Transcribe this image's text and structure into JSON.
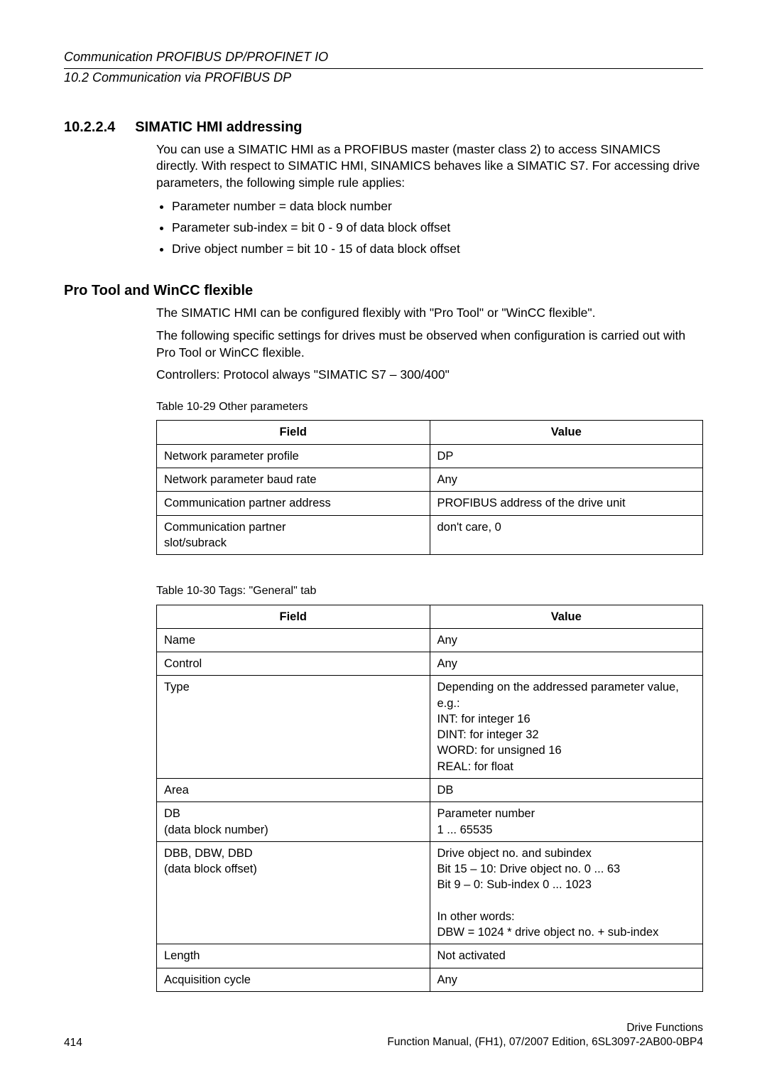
{
  "header": {
    "line1": "Communication PROFIBUS DP/PROFINET IO",
    "line2": "10.2 Communication via PROFIBUS DP"
  },
  "section": {
    "number": "10.2.2.4",
    "title": "SIMATIC HMI addressing",
    "intro": "You can use a SIMATIC HMI as a PROFIBUS master (master class 2) to access SINAMICS directly. With respect to SIMATIC HMI, SINAMICS behaves like a SIMATIC S7. For accessing drive parameters, the following simple rule applies:",
    "bullets": [
      "Parameter number = data block number",
      "Parameter sub-index = bit 0 - 9 of data block offset",
      "Drive object number = bit 10 - 15 of data block offset"
    ]
  },
  "subsection": {
    "title": "Pro Tool and WinCC flexible",
    "p1": "The SIMATIC HMI can be configured flexibly with \"Pro Tool\" or \"WinCC flexible\".",
    "p2": "The following specific settings for drives must be observed when configuration is carried out with Pro Tool or WinCC flexible.",
    "p3": "Controllers: Protocol always \"SIMATIC S7 – 300/400\""
  },
  "table29": {
    "caption": "Table 10-29   Other parameters",
    "columns": [
      "Field",
      "Value"
    ],
    "rows": [
      [
        "Network parameter profile",
        "DP"
      ],
      [
        "Network parameter baud rate",
        "Any"
      ],
      [
        "Communication partner address",
        "PROFIBUS address of the drive unit"
      ],
      [
        "Communication partner\nslot/subrack",
        "don't care, 0"
      ]
    ],
    "col_widths": [
      "50%",
      "50%"
    ]
  },
  "table30": {
    "caption": "Table 10-30   Tags: \"General\" tab",
    "columns": [
      "Field",
      "Value"
    ],
    "rows": [
      [
        "Name",
        "Any"
      ],
      [
        "Control",
        "Any"
      ],
      [
        "Type",
        "Depending on the addressed parameter value, e.g.:\nINT: for integer 16\nDINT: for integer 32\nWORD: for unsigned 16\nREAL: for float"
      ],
      [
        "Area",
        "DB"
      ],
      [
        "DB\n(data block number)",
        "Parameter number\n1 ... 65535"
      ],
      [
        "DBB, DBW, DBD\n(data block offset)",
        "Drive object no. and subindex\nBit 15 – 10: Drive object no. 0 ... 63\nBit 9 – 0: Sub-index 0 ... 1023\n\nIn other words:\nDBW = 1024 * drive object no. + sub-index"
      ],
      [
        "Length",
        "Not activated"
      ],
      [
        "Acquisition cycle",
        "Any"
      ]
    ],
    "col_widths": [
      "50%",
      "50%"
    ]
  },
  "footer": {
    "page": "414",
    "right1": "Drive Functions",
    "right2": "Function Manual, (FH1), 07/2007 Edition, 6SL3097-2AB00-0BP4"
  }
}
